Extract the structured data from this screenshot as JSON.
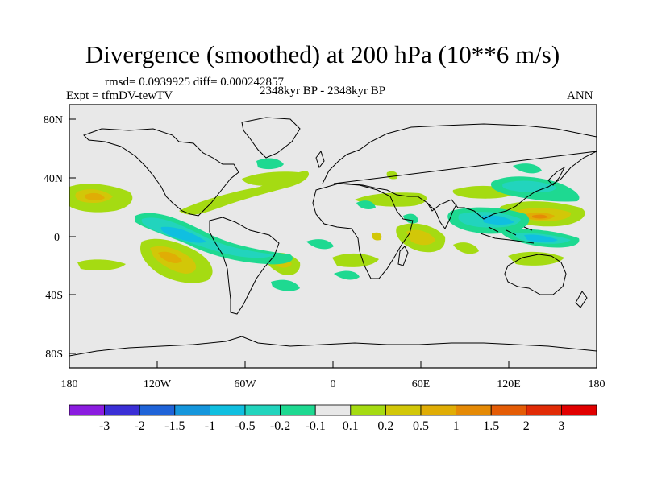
{
  "title": "Divergence (smoothed) at 200 hPa (10**6 m/s)",
  "stats": "rmsd= 0.0939925 diff= 0.000242857",
  "expt": "Expt = tfmDV-tewTV",
  "period": "2348kyr BP - 2348kyr BP",
  "season": "ANN",
  "map": {
    "lon_ticks": [
      "180",
      "120W",
      "60W",
      "0",
      "60E",
      "120E",
      "180"
    ],
    "lat_ticks": [
      "80N",
      "40N",
      "0",
      "40S",
      "80S"
    ],
    "lon_range": [
      -180,
      180
    ],
    "lat_range": [
      -90,
      90
    ],
    "background_color": "#e8e8e8"
  },
  "colorbar": {
    "labels": [
      "-3",
      "-2",
      "-1.5",
      "-1",
      "-0.5",
      "-0.2",
      "-0.1",
      "0.1",
      "0.2",
      "0.5",
      "1",
      "1.5",
      "2",
      "3"
    ],
    "colors": [
      "#8b1ce0",
      "#3b2fd6",
      "#1f63d8",
      "#1596dc",
      "#10bfe0",
      "#22d4bd",
      "#1ed991",
      "#e8e8e8",
      "#a5db12",
      "#d2c708",
      "#e0ad05",
      "#e58a06",
      "#e45c06",
      "#e12b06",
      "#e10000"
    ]
  }
}
